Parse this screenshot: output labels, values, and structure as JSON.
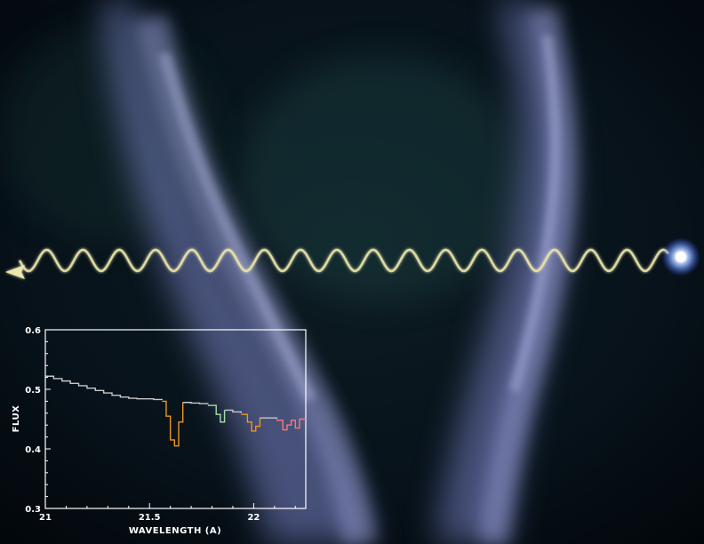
{
  "colors": {
    "space_background": "#050b10",
    "nebula": "#8c94d8",
    "wave": "#e8e2a8",
    "star": "#bcd8ff",
    "spectrum_continuum": "#c8c8c8",
    "spectrum_orange": "#f0961e",
    "spectrum_green": "#a8e0a8",
    "spectrum_red": "#ff7878",
    "axes": "#ffffff"
  },
  "icons": {
    "arrowhead": "light-ray-arrowhead-icon",
    "star": "glowing-star-icon"
  },
  "chart_data": {
    "type": "line",
    "title": "",
    "xlabel": "WAVELENGTH (A)",
    "ylabel": "FLUX",
    "xlim": [
      21.0,
      22.25
    ],
    "ylim": [
      0.3,
      0.6
    ],
    "x_ticks": [
      21,
      21.5,
      22
    ],
    "x_tick_labels": [
      "21",
      "21.5",
      "22"
    ],
    "y_ticks": [
      0.3,
      0.4,
      0.5,
      0.6
    ],
    "y_tick_labels": [
      "0.3",
      "0.4",
      "0.5",
      "0.6"
    ],
    "grid": false,
    "style": "step",
    "series": [
      {
        "color": "#c8c8c8",
        "x": [
          21.0,
          21.04,
          21.08,
          21.12,
          21.16,
          21.2,
          21.24,
          21.28,
          21.32,
          21.36,
          21.4,
          21.44,
          21.48,
          21.52,
          21.56
        ],
        "y": [
          0.522,
          0.518,
          0.514,
          0.51,
          0.506,
          0.502,
          0.498,
          0.494,
          0.49,
          0.487,
          0.485,
          0.484,
          0.484,
          0.483,
          0.482
        ]
      },
      {
        "color": "#f0961e",
        "x": [
          21.56,
          21.58,
          21.6,
          21.62,
          21.64,
          21.66
        ],
        "y": [
          0.48,
          0.455,
          0.415,
          0.405,
          0.445,
          0.478
        ]
      },
      {
        "color": "#c8c8c8",
        "x": [
          21.66,
          21.7,
          21.74,
          21.78
        ],
        "y": [
          0.478,
          0.477,
          0.476,
          0.475
        ]
      },
      {
        "color": "#a8e0a8",
        "x": [
          21.78,
          21.82,
          21.84,
          21.86
        ],
        "y": [
          0.473,
          0.458,
          0.445,
          0.465
        ]
      },
      {
        "color": "#c8c8c8",
        "x": [
          21.86,
          21.9,
          21.94
        ],
        "y": [
          0.465,
          0.462,
          0.46
        ]
      },
      {
        "color": "#f0961e",
        "x": [
          21.94,
          21.97,
          21.99,
          22.01,
          22.03
        ],
        "y": [
          0.458,
          0.445,
          0.43,
          0.438,
          0.452
        ]
      },
      {
        "color": "#c8c8c8",
        "x": [
          22.03,
          22.07,
          22.11
        ],
        "y": [
          0.452,
          0.452,
          0.45
        ]
      },
      {
        "color": "#ff7878",
        "x": [
          22.11,
          22.14,
          22.16,
          22.18,
          22.2,
          22.22,
          22.25
        ],
        "y": [
          0.448,
          0.432,
          0.44,
          0.448,
          0.435,
          0.45,
          0.45
        ]
      }
    ]
  }
}
